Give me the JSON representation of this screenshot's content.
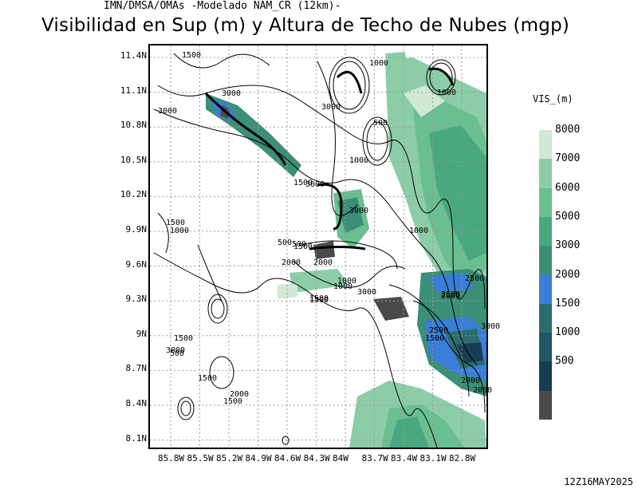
{
  "header": {
    "source_line": "IMN/DMSA/OMAs -Modelado NAM_CR (12km)-",
    "title": "Visibilidad en Sup (m) y Altura de Techo de Nubes (mgp)"
  },
  "chart_data": {
    "type": "heatmap",
    "title": "Visibilidad en Sup (m) y Altura de Techo de Nubes (mgp)",
    "y_ticks": [
      "11.4N",
      "11.1N",
      "10.8N",
      "10.5N",
      "10.2N",
      "9.9N",
      "9.6N",
      "9.3N",
      "9N",
      "8.7N",
      "8.4N",
      "8.1N"
    ],
    "x_ticks": [
      "85.8W",
      "85.5W",
      "85.2W",
      "84.9W",
      "84.6W",
      "84.3W",
      "84W",
      "83.7W",
      "83.4W",
      "83.1W",
      "82.8W"
    ],
    "colorbar": {
      "label": "VIS_(m)",
      "levels": [
        "8000",
        "7000",
        "6000",
        "5000",
        "3000",
        "2000",
        "1500",
        "1000",
        "500"
      ],
      "colors": [
        "#d1e8d4",
        "#8ccda7",
        "#6abf91",
        "#49a87f",
        "#3a8f76",
        "#3b7ed8",
        "#2a6d6a",
        "#20556a",
        "#173d55",
        "#4a4a4a"
      ]
    },
    "contour_labels": [
      "1500",
      "3000",
      "3000",
      "3000",
      "1000",
      "1000",
      "500",
      "1000",
      "1500",
      "3000",
      "1000",
      "1500",
      "1000",
      "500",
      "2000",
      "1500",
      "2000",
      "1000",
      "3000",
      "1500",
      "2500",
      "2000",
      "2500",
      "1500",
      "3000",
      "1500",
      "2000",
      "3000",
      "1500",
      "2000",
      "1500",
      "500",
      "2500",
      "2000",
      "1000",
      "500",
      "1500",
      "3000"
    ]
  },
  "footer": {
    "timestamp": "12Z16MAY2025"
  }
}
